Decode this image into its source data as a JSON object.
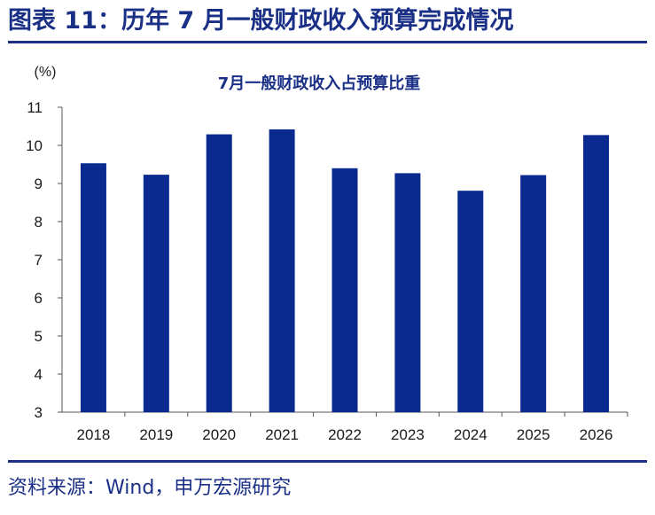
{
  "figure": {
    "title": "图表 11：历年 7 月一般财政收入预算完成情况",
    "source": "资料来源：Wind，申万宏源研究"
  },
  "colors": {
    "accent": "#1a2f86",
    "bar": "#0b2a8f",
    "axis": "#555555",
    "text": "#1a1a1a"
  },
  "chart_data": {
    "type": "bar",
    "title": "7月一般财政收入占预算比重",
    "ylabel": "(%)",
    "xlabel": "",
    "ylim": [
      3,
      11
    ],
    "yticks": [
      3,
      4,
      5,
      6,
      7,
      8,
      9,
      10,
      11
    ],
    "grid": false,
    "legend": "none",
    "categories": [
      "2018",
      "2019",
      "2020",
      "2021",
      "2022",
      "2023",
      "2024",
      "2025",
      "2026"
    ],
    "values": [
      9.53,
      9.23,
      10.29,
      10.42,
      9.4,
      9.27,
      8.81,
      9.22,
      10.27
    ]
  }
}
